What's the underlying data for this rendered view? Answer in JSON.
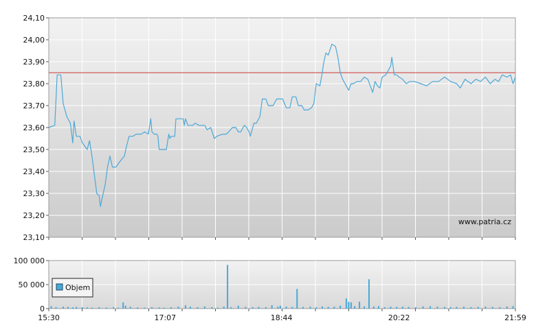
{
  "chart_data": [
    {
      "type": "line",
      "title": "",
      "xlabel": "",
      "ylabel": "",
      "ylim": [
        23.1,
        24.1
      ],
      "xlim": [
        "15:30",
        "21:59"
      ],
      "grid": true,
      "y_ticks": [
        "24,10",
        "24,00",
        "23,90",
        "23,80",
        "23,70",
        "23,60",
        "23,50",
        "23,40",
        "23,30",
        "23,20",
        "23,10"
      ],
      "reference_line": {
        "value": 23.85,
        "color": "#cc3333"
      },
      "watermark": "www.patria.cz",
      "series": [
        {
          "color": "#4aa8d8",
          "points": [
            [
              "15:30",
              23.6
            ],
            [
              "15:35",
              23.61
            ],
            [
              "15:37",
              23.84
            ],
            [
              "15:40",
              23.84
            ],
            [
              "15:42",
              23.71
            ],
            [
              "15:45",
              23.65
            ],
            [
              "15:48",
              23.62
            ],
            [
              "15:50",
              23.53
            ],
            [
              "15:51",
              23.63
            ],
            [
              "15:53",
              23.56
            ],
            [
              "15:56",
              23.56
            ],
            [
              "15:58",
              23.53
            ],
            [
              "16:02",
              23.5
            ],
            [
              "16:04",
              23.54
            ],
            [
              "16:06",
              23.47
            ],
            [
              "16:10",
              23.3
            ],
            [
              "16:12",
              23.29
            ],
            [
              "16:13",
              23.24
            ],
            [
              "16:15",
              23.29
            ],
            [
              "16:17",
              23.34
            ],
            [
              "16:19",
              23.42
            ],
            [
              "16:21",
              23.47
            ],
            [
              "16:23",
              23.42
            ],
            [
              "16:26",
              23.42
            ],
            [
              "16:30",
              23.45
            ],
            [
              "16:33",
              23.47
            ],
            [
              "16:35",
              23.52
            ],
            [
              "16:37",
              23.56
            ],
            [
              "16:40",
              23.56
            ],
            [
              "16:43",
              23.57
            ],
            [
              "16:47",
              23.57
            ],
            [
              "16:50",
              23.58
            ],
            [
              "16:53",
              23.57
            ],
            [
              "16:55",
              23.64
            ],
            [
              "16:56",
              23.58
            ],
            [
              "16:58",
              23.57
            ],
            [
              "17:00",
              23.57
            ],
            [
              "17:01",
              23.56
            ],
            [
              "17:02",
              23.5
            ],
            [
              "17:05",
              23.5
            ],
            [
              "17:08",
              23.5
            ],
            [
              "17:10",
              23.57
            ],
            [
              "17:11",
              23.55
            ],
            [
              "17:12",
              23.56
            ],
            [
              "17:15",
              23.56
            ],
            [
              "17:16",
              23.64
            ],
            [
              "17:20",
              23.64
            ],
            [
              "17:22",
              23.64
            ],
            [
              "17:23",
              23.61
            ],
            [
              "17:24",
              23.64
            ],
            [
              "17:26",
              23.61
            ],
            [
              "17:30",
              23.61
            ],
            [
              "17:32",
              23.62
            ],
            [
              "17:35",
              23.61
            ],
            [
              "17:40",
              23.61
            ],
            [
              "17:42",
              23.59
            ],
            [
              "17:45",
              23.6
            ],
            [
              "17:48",
              23.55
            ],
            [
              "17:50",
              23.56
            ],
            [
              "17:55",
              23.57
            ],
            [
              "17:58",
              23.57
            ],
            [
              "18:00",
              23.58
            ],
            [
              "18:03",
              23.6
            ],
            [
              "18:06",
              23.6
            ],
            [
              "18:08",
              23.58
            ],
            [
              "18:10",
              23.58
            ],
            [
              "18:13",
              23.61
            ],
            [
              "18:15",
              23.6
            ],
            [
              "18:17",
              23.58
            ],
            [
              "18:18",
              23.56
            ],
            [
              "18:21",
              23.62
            ],
            [
              "18:23",
              23.62
            ],
            [
              "18:26",
              23.65
            ],
            [
              "18:28",
              23.73
            ],
            [
              "18:31",
              23.73
            ],
            [
              "18:33",
              23.7
            ],
            [
              "18:37",
              23.7
            ],
            [
              "18:40",
              23.73
            ],
            [
              "18:45",
              23.73
            ],
            [
              "18:48",
              23.69
            ],
            [
              "18:51",
              23.69
            ],
            [
              "18:53",
              23.74
            ],
            [
              "18:56",
              23.74
            ],
            [
              "18:58",
              23.7
            ],
            [
              "19:01",
              23.7
            ],
            [
              "19:03",
              23.68
            ],
            [
              "19:06",
              23.68
            ],
            [
              "19:09",
              23.69
            ],
            [
              "19:11",
              23.71
            ],
            [
              "19:13",
              23.8
            ],
            [
              "19:16",
              23.79
            ],
            [
              "19:18",
              23.85
            ],
            [
              "19:19",
              23.89
            ],
            [
              "19:21",
              23.94
            ],
            [
              "19:23",
              23.93
            ],
            [
              "19:26",
              23.98
            ],
            [
              "19:29",
              23.97
            ],
            [
              "19:31",
              23.92
            ],
            [
              "19:33",
              23.85
            ],
            [
              "19:35",
              23.82
            ],
            [
              "19:38",
              23.79
            ],
            [
              "19:40",
              23.77
            ],
            [
              "19:42",
              23.8
            ],
            [
              "19:44",
              23.8
            ],
            [
              "19:47",
              23.81
            ],
            [
              "19:50",
              23.81
            ],
            [
              "19:53",
              23.83
            ],
            [
              "19:56",
              23.82
            ],
            [
              "19:58",
              23.79
            ],
            [
              "20:00",
              23.76
            ],
            [
              "20:02",
              23.81
            ],
            [
              "20:04",
              23.79
            ],
            [
              "20:06",
              23.78
            ],
            [
              "20:08",
              23.83
            ],
            [
              "20:11",
              23.84
            ],
            [
              "20:13",
              23.86
            ],
            [
              "20:15",
              23.88
            ],
            [
              "20:16",
              23.92
            ],
            [
              "20:18",
              23.84
            ],
            [
              "20:20",
              23.84
            ],
            [
              "20:22",
              23.83
            ],
            [
              "20:25",
              23.82
            ],
            [
              "20:28",
              23.8
            ],
            [
              "20:31",
              23.81
            ],
            [
              "20:35",
              23.81
            ],
            [
              "20:40",
              23.8
            ],
            [
              "20:45",
              23.79
            ],
            [
              "20:50",
              23.81
            ],
            [
              "20:55",
              23.81
            ],
            [
              "21:00",
              23.83
            ],
            [
              "21:05",
              23.81
            ],
            [
              "21:10",
              23.8
            ],
            [
              "21:13",
              23.78
            ],
            [
              "21:17",
              23.82
            ],
            [
              "21:22",
              23.8
            ],
            [
              "21:26",
              23.82
            ],
            [
              "21:30",
              23.81
            ],
            [
              "21:34",
              23.83
            ],
            [
              "21:38",
              23.8
            ],
            [
              "21:42",
              23.82
            ],
            [
              "21:45",
              23.81
            ],
            [
              "21:48",
              23.84
            ],
            [
              "21:52",
              23.83
            ],
            [
              "21:55",
              23.84
            ],
            [
              "21:57",
              23.8
            ],
            [
              "21:59",
              23.83
            ]
          ]
        }
      ]
    },
    {
      "type": "bar",
      "title": "",
      "xlabel": "",
      "ylabel": "",
      "ylim": [
        0,
        100000
      ],
      "y_ticks": [
        "100 000",
        "50 000",
        "0"
      ],
      "x_ticks": [
        "15:30",
        "17:07",
        "18:44",
        "20:22",
        "21:59"
      ],
      "grid": true,
      "legend": {
        "position": "left",
        "label": "Objem"
      },
      "series": [
        {
          "name": "Objem",
          "color": "#4aa8d8",
          "points": [
            [
              "15:32",
              5000
            ],
            [
              "15:36",
              3000
            ],
            [
              "15:42",
              4000
            ],
            [
              "15:46",
              3500
            ],
            [
              "15:50",
              2500
            ],
            [
              "15:53",
              3500
            ],
            [
              "15:58",
              3000
            ],
            [
              "16:02",
              2500
            ],
            [
              "16:06",
              2000
            ],
            [
              "16:12",
              3000
            ],
            [
              "16:18",
              2500
            ],
            [
              "16:24",
              3000
            ],
            [
              "16:28",
              2000
            ],
            [
              "16:32",
              13000
            ],
            [
              "16:34",
              6000
            ],
            [
              "16:38",
              4000
            ],
            [
              "16:44",
              2500
            ],
            [
              "16:50",
              2000
            ],
            [
              "16:56",
              3000
            ],
            [
              "17:02",
              2500
            ],
            [
              "17:06",
              2000
            ],
            [
              "17:12",
              3000
            ],
            [
              "17:18",
              4000
            ],
            [
              "17:24",
              6500
            ],
            [
              "17:28",
              4000
            ],
            [
              "17:34",
              3000
            ],
            [
              "17:40",
              4500
            ],
            [
              "17:46",
              3000
            ],
            [
              "17:51",
              2000
            ],
            [
              "17:56",
              4000
            ],
            [
              "17:59",
              91000
            ],
            [
              "18:02",
              3000
            ],
            [
              "18:08",
              6000
            ],
            [
              "18:14",
              3500
            ],
            [
              "18:20",
              3000
            ],
            [
              "18:25",
              3500
            ],
            [
              "18:31",
              3000
            ],
            [
              "18:36",
              7000
            ],
            [
              "18:41",
              4000
            ],
            [
              "18:43",
              6000
            ],
            [
              "18:48",
              4000
            ],
            [
              "18:53",
              3500
            ],
            [
              "18:57",
              41000
            ],
            [
              "19:02",
              3500
            ],
            [
              "19:08",
              4000
            ],
            [
              "19:13",
              3000
            ],
            [
              "19:18",
              4500
            ],
            [
              "19:23",
              3500
            ],
            [
              "19:28",
              4000
            ],
            [
              "19:33",
              6000
            ],
            [
              "19:38",
              21000
            ],
            [
              "19:40",
              14000
            ],
            [
              "19:42",
              13000
            ],
            [
              "19:45",
              5000
            ],
            [
              "19:49",
              14500
            ],
            [
              "19:53",
              4500
            ],
            [
              "19:57",
              61000
            ],
            [
              "20:01",
              4500
            ],
            [
              "20:05",
              5000
            ],
            [
              "20:10",
              3000
            ],
            [
              "20:15",
              4000
            ],
            [
              "20:20",
              3500
            ],
            [
              "20:25",
              4000
            ],
            [
              "20:30",
              3500
            ],
            [
              "20:36",
              3000
            ],
            [
              "20:42",
              4500
            ],
            [
              "20:48",
              5000
            ],
            [
              "20:54",
              4000
            ],
            [
              "21:00",
              3500
            ],
            [
              "21:05",
              3000
            ],
            [
              "21:10",
              3500
            ],
            [
              "21:16",
              4000
            ],
            [
              "21:22",
              3000
            ],
            [
              "21:28",
              3500
            ],
            [
              "21:34",
              4000
            ],
            [
              "21:40",
              3500
            ],
            [
              "21:46",
              3000
            ],
            [
              "21:52",
              4500
            ],
            [
              "21:57",
              5000
            ]
          ]
        }
      ]
    }
  ]
}
